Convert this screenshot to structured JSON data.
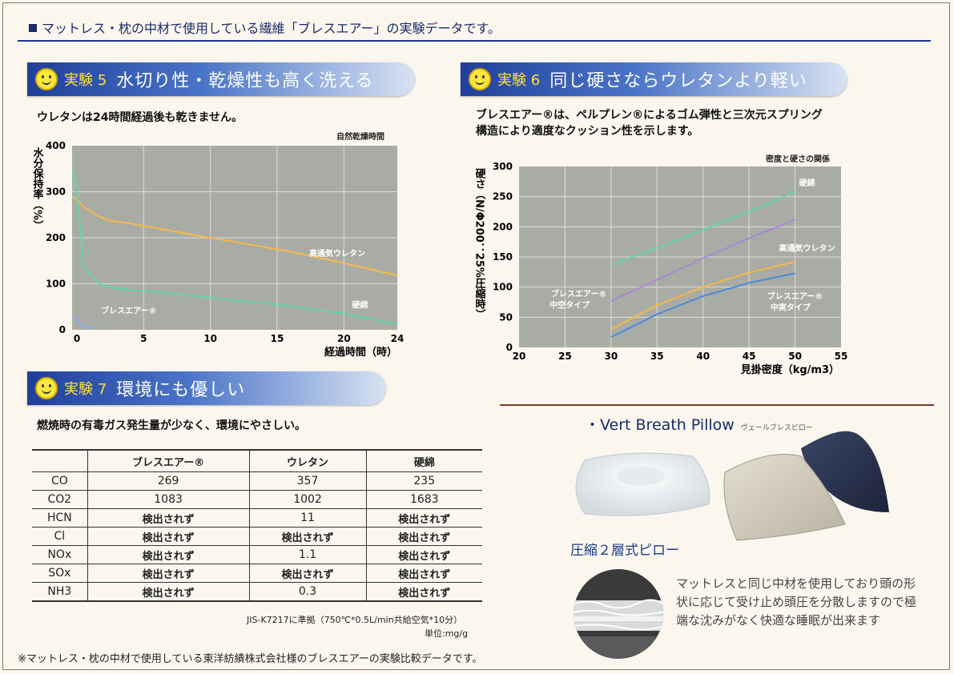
{
  "header": {
    "title": "マットレス・枕の中材で使用している繊維「ブレスエアー」の実験データです。"
  },
  "exp5": {
    "num": "実験 5",
    "title": "水切り性・乾燥性も高く洗える",
    "lead": "ウレタンは24時間経過後も乾きません。",
    "chart_title": "自然乾燥時間",
    "ylabel": "水分保持率（%）",
    "xlabel": "経過時間（時）",
    "label_urethane": "高通気ウレタン",
    "label_cotton": "硬綿",
    "label_breathair": "ブレスエアー®"
  },
  "exp6": {
    "num": "実験 6",
    "title": "同じ硬さならウレタンより軽い",
    "lead1": "ブレスエアー®は、ペルプレン®によるゴム弾性と三次元スプリング",
    "lead2": "構造により適度なクッション性を示します。",
    "chart_title": "密度と硬さの関係",
    "ylabel": "硬さ（N/Φ200：25%圧縮時）",
    "xlabel": "見掛密度（kg/m3）",
    "label_cotton": "硬綿",
    "label_urethane": "高通気ウレタン",
    "label_hollow1": "ブレスエアー®",
    "label_hollow2": "中空タイプ",
    "label_solid1": "ブレスエアー®",
    "label_solid2": "中実タイプ"
  },
  "exp7": {
    "num": "実験 7",
    "title": "環境にも優しい",
    "lead": "燃焼時の有毒ガス発生量が少なく、環境にやさしい。",
    "columns": [
      "",
      "ブレスエアー®",
      "ウレタン",
      "硬綿"
    ],
    "rows": [
      [
        "CO",
        "269",
        "357",
        "235"
      ],
      [
        "CO2",
        "1083",
        "1002",
        "1683"
      ],
      [
        "HCN",
        "検出されず",
        "11",
        "検出されず"
      ],
      [
        "Cl",
        "検出されず",
        "検出されず",
        "検出されず"
      ],
      [
        "NOx",
        "検出されず",
        "1.1",
        "検出されず"
      ],
      [
        "SOx",
        "検出されず",
        "検出されず",
        "検出されず"
      ],
      [
        "NH3",
        "検出されず",
        "0.3",
        "検出されず"
      ]
    ],
    "note1": "JIS-K7217に準拠（750℃*0.5L/min共給空気*10分）",
    "note2": "単位:mg/g"
  },
  "pillow": {
    "title": "・Vert Breath Pillow",
    "kana": "ヴェールブレスピロー",
    "caption": "圧縮２層式ピロー",
    "description": "マットレスと同じ中材を使用しており頭の形状に応じて受け止め頭圧を分散しますので極端な沈みがなく快適な睡眠が出来ます"
  },
  "footer": "※マットレス・枕の中材で使用している東洋紡績株式会社様のブレスエアーの実験比較データです。",
  "chart_data": [
    {
      "type": "line",
      "title": "自然乾燥時間",
      "xlabel": "経過時間（時）",
      "ylabel": "水分保持率（%）",
      "xlim": [
        0,
        24
      ],
      "ylim": [
        0,
        400
      ],
      "xticks": [
        0,
        5,
        10,
        15,
        20,
        24
      ],
      "yticks": [
        0,
        100,
        200,
        300,
        400
      ],
      "series": [
        {
          "name": "高通気ウレタン",
          "color": "#f6b84a",
          "x": [
            -0.3,
            0.5,
            1.5,
            2.5,
            4,
            8,
            12,
            16,
            20,
            24
          ],
          "y": [
            290,
            268,
            248,
            237,
            231,
            210,
            190,
            170,
            145,
            118
          ]
        },
        {
          "name": "硬綿",
          "color": "#62d6a6",
          "x": [
            -0.3,
            0,
            0.3,
            0.5,
            0.7,
            1,
            1.5,
            2,
            3,
            6,
            10,
            15,
            20,
            24
          ],
          "y": [
            345,
            300,
            200,
            140,
            130,
            120,
            105,
            95,
            90,
            82,
            70,
            55,
            35,
            12
          ]
        },
        {
          "name": "ブレスエアー®",
          "color": "#7fb2ea",
          "x": [
            -0.3,
            0,
            0.3,
            0.6,
            1,
            1.5
          ],
          "y": [
            33,
            20,
            12,
            7,
            5,
            4
          ]
        }
      ]
    },
    {
      "type": "line",
      "title": "密度と硬さの関係",
      "xlabel": "見掛密度（kg/m3）",
      "ylabel": "硬さ（N/Φ200：25%圧縮時）",
      "xlim": [
        20,
        55
      ],
      "ylim": [
        0,
        300
      ],
      "xticks": [
        20,
        25,
        30,
        35,
        40,
        45,
        50,
        55
      ],
      "yticks": [
        0,
        50,
        100,
        150,
        200,
        250,
        300
      ],
      "series": [
        {
          "name": "硬綿",
          "color": "#62d6a6",
          "x": [
            30,
            35,
            40,
            45,
            50
          ],
          "y": [
            137,
            165,
            195,
            225,
            258
          ]
        },
        {
          "name": "ブレスエアー® 中空タイプ",
          "color": "#a987d6",
          "x": [
            30,
            35,
            40,
            45,
            50
          ],
          "y": [
            77,
            112,
            148,
            181,
            212
          ]
        },
        {
          "name": "高通気ウレタン",
          "color": "#f6b84a",
          "x": [
            30,
            35,
            40,
            45,
            50
          ],
          "y": [
            30,
            70,
            100,
            124,
            142
          ]
        },
        {
          "name": "ブレスエアー® 中実タイプ",
          "color": "#4a8ad8",
          "x": [
            30,
            35,
            40,
            45,
            50
          ],
          "y": [
            17,
            55,
            85,
            107,
            123
          ]
        }
      ]
    }
  ]
}
